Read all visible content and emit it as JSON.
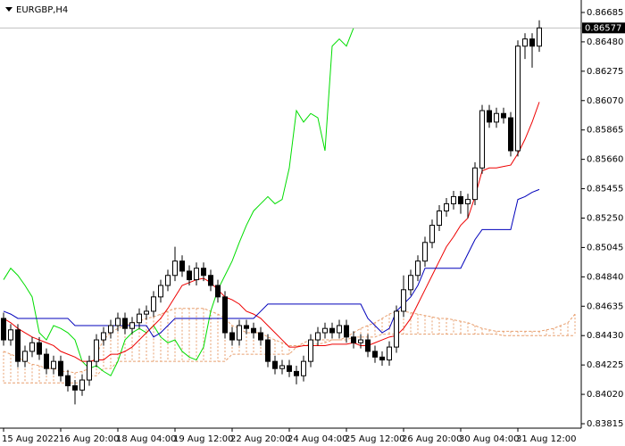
{
  "chart_data": {
    "type": "candlestick",
    "symbol": "EURGBP,H4",
    "ylim": [
      0.83784,
      0.86772
    ],
    "yticks": [
      0.86685,
      {
        "value": 0.8648,
        "label": "0.86480"
      },
      0.86275,
      {
        "value": 0.8607,
        "label": "0.86070"
      },
      0.85865,
      {
        "value": 0.8566,
        "label": "0.85660"
      },
      0.85455,
      {
        "value": 0.8525,
        "label": "0.85250"
      },
      0.85045,
      {
        "value": 0.8484,
        "label": "0.84840"
      },
      0.84635,
      {
        "value": 0.8443,
        "label": "0.84430"
      },
      0.84225,
      {
        "value": 0.8402,
        "label": "0.84020"
      },
      0.83815
    ],
    "time_labels": [
      "15 Aug 2022",
      "16 Aug 20:00",
      "18 Aug 04:00",
      "19 Aug 12:00",
      "22 Aug 20:00",
      "24 Aug 04:00",
      "25 Aug 12:00",
      "26 Aug 20:00",
      "30 Aug 04:00",
      "31 Aug 12:00"
    ],
    "up_color": "#ffffff",
    "down_color": "#000000",
    "open": [
      0.8455,
      0.844,
      0.8447,
      0.8425,
      0.8432,
      0.8438,
      0.843,
      0.842,
      0.8425,
      0.8415,
      0.8408,
      0.8405,
      0.8412,
      0.8425,
      0.844,
      0.8445,
      0.845,
      0.8455,
      0.8448,
      0.8452,
      0.8458,
      0.846,
      0.847,
      0.8478,
      0.8485,
      0.8495,
      0.8488,
      0.8482,
      0.849,
      0.8485,
      0.8478,
      0.847,
      0.8445,
      0.844,
      0.845,
      0.8448,
      0.8445,
      0.844,
      0.8425,
      0.842,
      0.8422,
      0.8418,
      0.8415,
      0.8425,
      0.844,
      0.8445,
      0.8448,
      0.8445,
      0.845,
      0.8442,
      0.8438,
      0.844,
      0.8432,
      0.8428,
      0.8426,
      0.8435,
      0.846,
      0.8475,
      0.8485,
      0.8495,
      0.8508,
      0.852,
      0.853,
      0.8535,
      0.854,
      0.8535,
      0.8538,
      0.856,
      0.86,
      0.8592,
      0.8598,
      0.8595,
      0.8572,
      0.8645,
      0.865,
      0.8645
    ],
    "high": [
      0.8459,
      0.8451,
      0.8451,
      0.8436,
      0.8442,
      0.8442,
      0.8434,
      0.8429,
      0.8429,
      0.8419,
      0.8412,
      0.8416,
      0.8429,
      0.8444,
      0.8449,
      0.8454,
      0.8459,
      0.8459,
      0.8456,
      0.8462,
      0.8464,
      0.8474,
      0.8482,
      0.8489,
      0.8505,
      0.8499,
      0.8492,
      0.8494,
      0.8494,
      0.8489,
      0.8482,
      0.8474,
      0.8449,
      0.8454,
      0.8454,
      0.8452,
      0.8449,
      0.8444,
      0.8429,
      0.8426,
      0.8426,
      0.8422,
      0.8429,
      0.8444,
      0.8449,
      0.8452,
      0.8452,
      0.8454,
      0.8454,
      0.8446,
      0.8444,
      0.8444,
      0.8436,
      0.8432,
      0.8439,
      0.8464,
      0.8485,
      0.8489,
      0.8499,
      0.8512,
      0.8524,
      0.8534,
      0.8539,
      0.8544,
      0.8544,
      0.8542,
      0.8564,
      0.8604,
      0.8604,
      0.8602,
      0.8602,
      0.8599,
      0.8649,
      0.8654,
      0.8654,
      0.8663
    ],
    "low": [
      0.8436,
      0.8436,
      0.8421,
      0.8421,
      0.8428,
      0.8426,
      0.8416,
      0.8416,
      0.8411,
      0.8404,
      0.8395,
      0.8401,
      0.8408,
      0.8421,
      0.8436,
      0.8441,
      0.8446,
      0.8444,
      0.8444,
      0.8448,
      0.8454,
      0.8456,
      0.8466,
      0.8474,
      0.8481,
      0.8484,
      0.8478,
      0.8478,
      0.8481,
      0.8474,
      0.8466,
      0.8441,
      0.8436,
      0.8436,
      0.8444,
      0.8441,
      0.8436,
      0.8421,
      0.8416,
      0.8416,
      0.8414,
      0.8409,
      0.8411,
      0.8421,
      0.8436,
      0.8441,
      0.8441,
      0.8441,
      0.8438,
      0.8434,
      0.8434,
      0.8428,
      0.8424,
      0.8422,
      0.8422,
      0.8431,
      0.8456,
      0.8471,
      0.8481,
      0.8491,
      0.8504,
      0.8516,
      0.8526,
      0.8531,
      0.8528,
      0.8525,
      0.8534,
      0.8556,
      0.8588,
      0.8588,
      0.8591,
      0.8568,
      0.8568,
      0.8636,
      0.863,
      0.8641
    ],
    "close": [
      0.844,
      0.8447,
      0.8425,
      0.8432,
      0.8438,
      0.843,
      0.842,
      0.8425,
      0.8415,
      0.8408,
      0.8405,
      0.8412,
      0.8425,
      0.844,
      0.8445,
      0.845,
      0.8455,
      0.8448,
      0.8452,
      0.8458,
      0.846,
      0.847,
      0.8478,
      0.8485,
      0.8495,
      0.8488,
      0.8482,
      0.849,
      0.8485,
      0.8478,
      0.847,
      0.8445,
      0.844,
      0.845,
      0.8448,
      0.8445,
      0.844,
      0.8425,
      0.842,
      0.8422,
      0.8418,
      0.8415,
      0.8425,
      0.844,
      0.8445,
      0.8448,
      0.8445,
      0.845,
      0.8442,
      0.8438,
      0.844,
      0.8432,
      0.8428,
      0.8426,
      0.8435,
      0.846,
      0.8475,
      0.8485,
      0.8495,
      0.8508,
      0.852,
      0.853,
      0.8535,
      0.854,
      0.8535,
      0.8538,
      0.856,
      0.86,
      0.8592,
      0.8598,
      0.8595,
      0.8572,
      0.8645,
      0.865,
      0.8645,
      0.86577
    ],
    "cloud": {
      "color": "#e8a070",
      "span_a": [
        0.8432,
        0.843,
        0.8428,
        0.8425,
        0.8423,
        0.8422,
        0.842,
        0.842,
        0.8418,
        0.8418,
        0.8417,
        0.8418,
        0.842,
        0.843,
        0.844,
        0.8445,
        0.8448,
        0.845,
        0.8452,
        0.8453,
        0.8455,
        0.8456,
        0.8458,
        0.846,
        0.8462,
        0.8462,
        0.8462,
        0.8462,
        0.8462,
        0.846,
        0.8458,
        0.8455,
        0.845,
        0.8448,
        0.8445,
        0.8445,
        0.8445,
        0.8442,
        0.844,
        0.8438,
        0.8436,
        0.8436,
        0.8436,
        0.8437,
        0.8437,
        0.8438,
        0.844,
        0.844,
        0.8442,
        0.8445,
        0.8448,
        0.845,
        0.8452,
        0.8455,
        0.8458,
        0.846,
        0.846,
        0.8459,
        0.8458,
        0.8457,
        0.8456,
        0.8455,
        0.8455,
        0.8454,
        0.8453,
        0.8452,
        0.845,
        0.8448,
        0.8447,
        0.8446,
        0.8446,
        0.8446,
        0.8446,
        0.8446,
        0.8446,
        0.8446,
        0.8447,
        0.8448,
        0.845,
        0.8452,
        0.8458
      ],
      "span_b": [
        0.841,
        0.841,
        0.841,
        0.841,
        0.841,
        0.841,
        0.841,
        0.841,
        0.841,
        0.841,
        0.841,
        0.841,
        0.8415,
        0.8415,
        0.842,
        0.842,
        0.8425,
        0.8425,
        0.8425,
        0.8425,
        0.8425,
        0.8425,
        0.8425,
        0.8425,
        0.8425,
        0.8425,
        0.8425,
        0.8425,
        0.8425,
        0.8425,
        0.8425,
        0.8425,
        0.843,
        0.843,
        0.843,
        0.843,
        0.843,
        0.843,
        0.843,
        0.843,
        0.843,
        0.8435,
        0.8438,
        0.844,
        0.844,
        0.844,
        0.844,
        0.844,
        0.844,
        0.8442,
        0.8442,
        0.8442,
        0.8442,
        0.8444,
        0.8444,
        0.8444,
        0.8444,
        0.8444,
        0.8444,
        0.8444,
        0.8444,
        0.8444,
        0.8444,
        0.8444,
        0.8444,
        0.8444,
        0.8444,
        0.8444,
        0.8444,
        0.8444,
        0.8443,
        0.8443,
        0.8443,
        0.8443,
        0.8443,
        0.8443,
        0.8443,
        0.8443,
        0.8443,
        0.8443,
        0.8443
      ]
    },
    "lines": [
      {
        "color": "#00dd00",
        "values": [
          0.8482,
          0.849,
          0.8485,
          0.8478,
          0.847,
          0.8445,
          0.844,
          0.845,
          0.8448,
          0.8445,
          0.844,
          0.8425,
          0.842,
          0.8422,
          0.8418,
          0.8415,
          0.8425,
          0.844,
          0.8445,
          0.8448,
          0.8445,
          0.845,
          0.8442,
          0.8438,
          0.844,
          0.8432,
          0.8428,
          0.8426,
          0.8435,
          0.846,
          0.8475,
          0.8485,
          0.8495,
          0.8508,
          0.852,
          0.853,
          0.8535,
          0.854,
          0.8535,
          0.8538,
          0.856,
          0.86,
          0.8592,
          0.8598,
          0.8595,
          0.8572,
          0.8645,
          0.865,
          0.8645,
          0.86577
        ]
      },
      {
        "color": "#ee0000",
        "values": [
          0.8455,
          0.8452,
          0.8448,
          0.8445,
          0.8442,
          0.844,
          0.8438,
          0.8436,
          0.8432,
          0.843,
          0.8428,
          0.8425,
          0.8425,
          0.8426,
          0.8426,
          0.843,
          0.843,
          0.8432,
          0.8435,
          0.844,
          0.8445,
          0.845,
          0.8455,
          0.8462,
          0.847,
          0.8478,
          0.848,
          0.8482,
          0.8483,
          0.848,
          0.8475,
          0.847,
          0.8468,
          0.8465,
          0.846,
          0.8458,
          0.8455,
          0.845,
          0.8445,
          0.844,
          0.8435,
          0.8435,
          0.8436,
          0.8436,
          0.8436,
          0.8436,
          0.8437,
          0.8437,
          0.8437,
          0.8438,
          0.8436,
          0.8436,
          0.8438,
          0.844,
          0.8442,
          0.8443,
          0.8448,
          0.8455,
          0.8465,
          0.8475,
          0.8485,
          0.8495,
          0.8505,
          0.8512,
          0.852,
          0.8525,
          0.854,
          0.8558,
          0.856,
          0.856,
          0.8561,
          0.8562,
          0.857,
          0.858,
          0.8592,
          0.8606
        ]
      },
      {
        "color": "#0000bb",
        "values": [
          0.846,
          0.8458,
          0.8455,
          0.8455,
          0.8455,
          0.8455,
          0.8455,
          0.8455,
          0.8455,
          0.8455,
          0.845,
          0.845,
          0.845,
          0.845,
          0.845,
          0.845,
          0.845,
          0.845,
          0.845,
          0.845,
          0.845,
          0.8442,
          0.8445,
          0.845,
          0.8455,
          0.8455,
          0.8455,
          0.8455,
          0.8455,
          0.8455,
          0.8455,
          0.8455,
          0.8455,
          0.8455,
          0.8455,
          0.8455,
          0.846,
          0.8465,
          0.8465,
          0.8465,
          0.8465,
          0.8465,
          0.8465,
          0.8465,
          0.8465,
          0.8465,
          0.8465,
          0.8465,
          0.8465,
          0.8465,
          0.8465,
          0.8455,
          0.845,
          0.8445,
          0.8448,
          0.846,
          0.8465,
          0.847,
          0.8478,
          0.849,
          0.849,
          0.849,
          0.849,
          0.849,
          0.849,
          0.85,
          0.851,
          0.8517,
          0.8517,
          0.8517,
          0.8517,
          0.8517,
          0.8538,
          0.854,
          0.8543,
          0.8545
        ]
      }
    ]
  }
}
